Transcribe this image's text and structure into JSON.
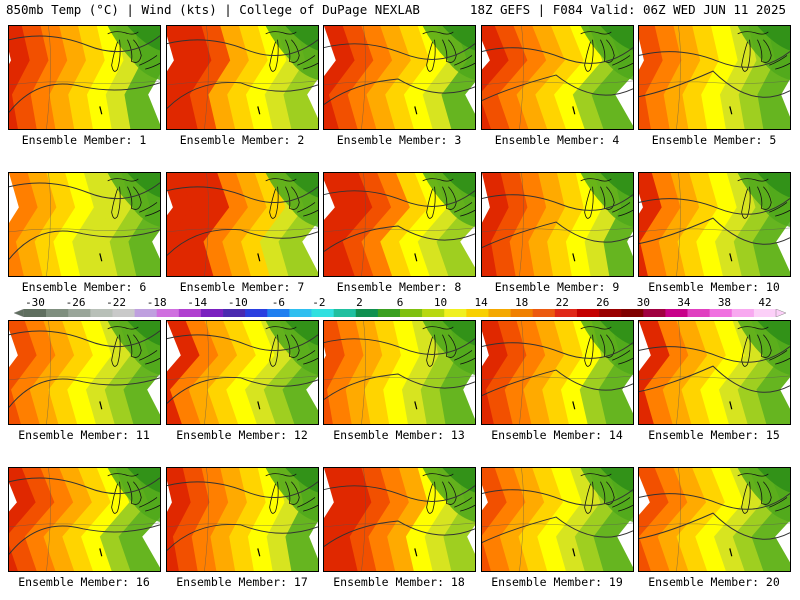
{
  "header": {
    "left": "850mb Temp (°C) | Wind (kts) | College of DuPage NEXLAB",
    "right": "18Z GEFS | F084 Valid: 06Z WED JUN 11 2025"
  },
  "member_label_prefix": "Ensemble Member:",
  "members": [
    {
      "id": "1",
      "warmth": 0.55
    },
    {
      "id": "2",
      "warmth": 0.6
    },
    {
      "id": "3",
      "warmth": 0.55
    },
    {
      "id": "4",
      "warmth": 0.5
    },
    {
      "id": "5",
      "warmth": 0.35
    },
    {
      "id": "6",
      "warmth": 0.3
    },
    {
      "id": "7",
      "warmth": 0.75
    },
    {
      "id": "8",
      "warmth": 0.65
    },
    {
      "id": "9",
      "warmth": 0.55
    },
    {
      "id": "10",
      "warmth": 0.45
    },
    {
      "id": "11",
      "warmth": 0.4
    },
    {
      "id": "12",
      "warmth": 0.45
    },
    {
      "id": "13",
      "warmth": 0.35
    },
    {
      "id": "14",
      "warmth": 0.5
    },
    {
      "id": "15",
      "warmth": 0.45
    },
    {
      "id": "16",
      "warmth": 0.5
    },
    {
      "id": "17",
      "warmth": 0.55
    },
    {
      "id": "18",
      "warmth": 0.7
    },
    {
      "id": "19",
      "warmth": 0.4
    },
    {
      "id": "20",
      "warmth": 0.35
    }
  ],
  "colorbar": {
    "ticks": [
      "-30",
      "-26",
      "-22",
      "-18",
      "-14",
      "-10",
      "-6",
      "-2",
      "2",
      "6",
      "10",
      "14",
      "18",
      "22",
      "26",
      "30",
      "34",
      "38",
      "42"
    ],
    "colors": [
      "#5f6f5f",
      "#7f8f7f",
      "#9aa69a",
      "#b8c0b8",
      "#c9c9c9",
      "#bfa0df",
      "#cf6fdf",
      "#b040d0",
      "#7a20c0",
      "#4a2ab0",
      "#2a3fe0",
      "#1f7ff0",
      "#2fbff0",
      "#30e0e0",
      "#20c0a0",
      "#109050",
      "#3aa020",
      "#7fc010",
      "#b8d810",
      "#f0f020",
      "#f8d000",
      "#f4a800",
      "#f08000",
      "#ec5a10",
      "#e02818",
      "#c40000",
      "#9a0000",
      "#800000",
      "#a00040",
      "#c8008a",
      "#e040c0",
      "#f070e0",
      "#f8a8f0",
      "#fcd0f8"
    ]
  }
}
